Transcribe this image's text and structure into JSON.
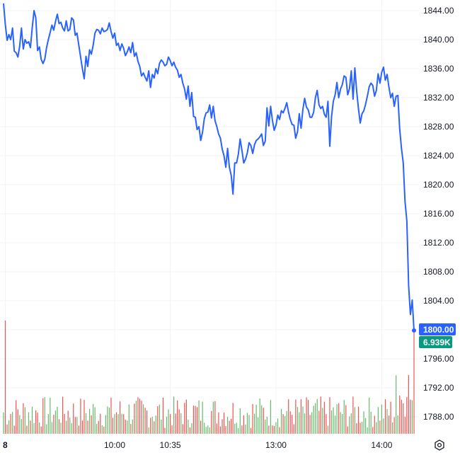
{
  "chart_data": {
    "type": "line",
    "y_ticks": [
      "1844.00",
      "1840.00",
      "1836.00",
      "1832.00",
      "1828.00",
      "1824.00",
      "1820.00",
      "1816.00",
      "1812.00",
      "1808.00",
      "1804.00",
      "1800.00",
      "1796.00",
      "1792.00",
      "1788.00"
    ],
    "y_tick_values": [
      1844,
      1840,
      1836,
      1832,
      1828,
      1824,
      1820,
      1816,
      1812,
      1808,
      1804,
      1800,
      1796,
      1792,
      1788
    ],
    "ylim": [
      1786.5,
      1845.4
    ],
    "x_ticks": [
      "8",
      "10:00",
      "10:35",
      "13:00",
      "14:00"
    ],
    "x_tick_index": [
      1,
      62,
      93,
      152,
      211
    ],
    "x_total_bars": 240,
    "grid": true,
    "price": {
      "name": "",
      "color": "#2962ff",
      "values": [
        1845.0,
        1842.1,
        1839.9,
        1840.7,
        1840.0,
        1841.6,
        1838.4,
        1838.2,
        1837.6,
        1839.1,
        1841.6,
        1838.7,
        1840.0,
        1839.5,
        1839.7,
        1838.9,
        1841.6,
        1844.0,
        1843.0,
        1838.5,
        1839.0,
        1837.3,
        1836.7,
        1837.3,
        1838.9,
        1840.0,
        1841.0,
        1842.0,
        1841.3,
        1842.5,
        1843.5,
        1842.2,
        1842.4,
        1841.6,
        1841.2,
        1842.6,
        1841.2,
        1841.4,
        1843.0,
        1842.7,
        1840.6,
        1840.9,
        1839.2,
        1837.6,
        1836.0,
        1834.6,
        1837.7,
        1836.3,
        1838.6,
        1838.0,
        1839.2,
        1840.9,
        1841.4,
        1841.3,
        1840.8,
        1841.6,
        1841.1,
        1841.2,
        1841.4,
        1842.3,
        1841.1,
        1840.2,
        1840.9,
        1839.2,
        1839.5,
        1838.5,
        1839.4,
        1838.8,
        1837.8,
        1838.3,
        1839.0,
        1838.2,
        1839.6,
        1837.7,
        1838.2,
        1837.0,
        1836.3,
        1835.0,
        1835.4,
        1834.8,
        1834.3,
        1835.7,
        1833.4,
        1835.2,
        1834.7,
        1836.0,
        1835.3,
        1836.7,
        1837.2,
        1836.9,
        1836.4,
        1836.6,
        1837.6,
        1837.1,
        1836.4,
        1836.9,
        1836.2,
        1835.8,
        1834.8,
        1835.2,
        1834.0,
        1833.2,
        1831.8,
        1833.6,
        1830.8,
        1832.7,
        1829.4,
        1829.3,
        1827.6,
        1828.0,
        1826.1,
        1827.2,
        1829.1,
        1829.9,
        1830.0,
        1831.0,
        1829.2,
        1830.8,
        1828.8,
        1828.0,
        1827.0,
        1826.4,
        1824.9,
        1824.0,
        1822.4,
        1825.0,
        1822.4,
        1821.3,
        1818.7,
        1823.0,
        1823.0,
        1824.2,
        1826.3,
        1824.7,
        1823.0,
        1823.5,
        1824.4,
        1825.8,
        1825.4,
        1824.3,
        1825.5,
        1826.1,
        1826.3,
        1826.6,
        1827.0,
        1825.4,
        1826.0,
        1830.6,
        1828.1,
        1830.8,
        1828.9,
        1827.5,
        1828.2,
        1829.6,
        1829.0,
        1830.2,
        1829.9,
        1830.5,
        1831.3,
        1830.0,
        1829.0,
        1828.3,
        1828.2,
        1826.4,
        1827.3,
        1829.8,
        1827.8,
        1830.4,
        1831.9,
        1830.7,
        1830.3,
        1829.3,
        1829.3,
        1830.0,
        1832.0,
        1833.0,
        1831.0,
        1830.5,
        1830.8,
        1829.7,
        1829.3,
        1831.5,
        1825.3,
        1829.4,
        1831.5,
        1832.4,
        1834.1,
        1832.0,
        1833.2,
        1833.8,
        1835.0,
        1834.8,
        1832.4,
        1833.2,
        1835.7,
        1831.8,
        1836.1,
        1832.9,
        1830.5,
        1828.5,
        1829.8,
        1830.2,
        1831.1,
        1832.2,
        1833.5,
        1834.0,
        1833.7,
        1832.2,
        1833.0,
        1835.3,
        1834.0,
        1835.5,
        1836.2,
        1834.4,
        1835.2,
        1833.5,
        1832.0,
        1832.6,
        1830.8,
        1832.2,
        1832.3,
        1827.8,
        1825.0,
        1823.0,
        1817.7,
        1815.0,
        1806.1,
        1802.1,
        1804.1,
        1799.9
      ],
      "last_label": "1800.00",
      "last_color": "#2962ff"
    },
    "volume": {
      "label": "6.939K",
      "label_color": "#089981",
      "up_color": "#66bb6a",
      "down_color": "#ef5350",
      "max": 12000
    }
  },
  "settings_icon": "gear-icon"
}
